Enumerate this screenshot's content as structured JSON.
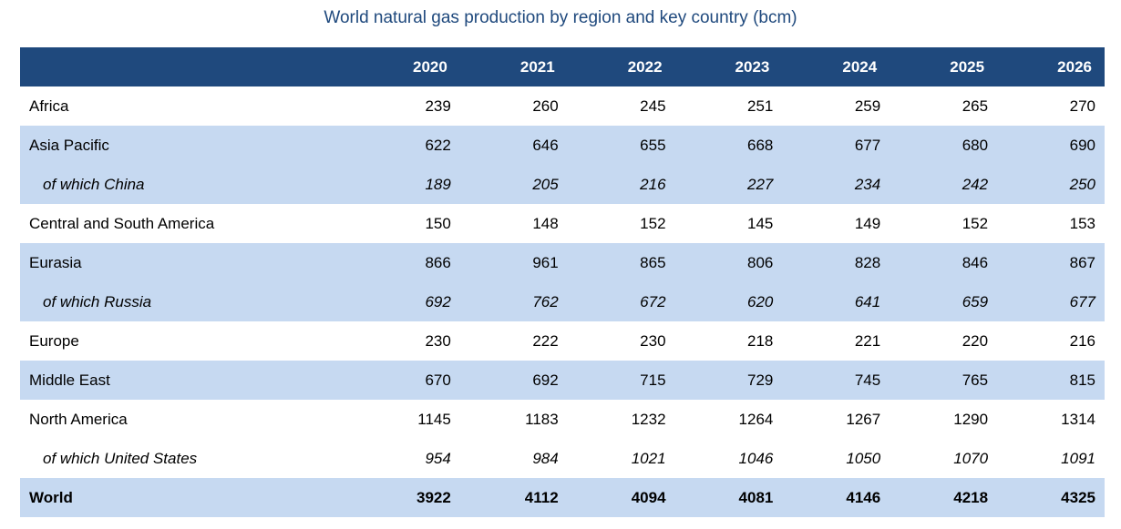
{
  "title": "World natural gas production by region and key country (bcm)",
  "table": {
    "headers": [
      "",
      "2020",
      "2021",
      "2022",
      "2023",
      "2024",
      "2025",
      "2026"
    ],
    "rows": [
      {
        "label": "Africa",
        "values": [
          "239",
          "260",
          "245",
          "251",
          "259",
          "265",
          "270"
        ]
      },
      {
        "label": "Asia Pacific",
        "values": [
          "622",
          "646",
          "655",
          "668",
          "677",
          "680",
          "690"
        ]
      },
      {
        "label": "of which China",
        "values": [
          "189",
          "205",
          "216",
          "227",
          "234",
          "242",
          "250"
        ]
      },
      {
        "label": "Central and South America",
        "values": [
          "150",
          "148",
          "152",
          "145",
          "149",
          "152",
          "153"
        ]
      },
      {
        "label": "Eurasia",
        "values": [
          "866",
          "961",
          "865",
          "806",
          "828",
          "846",
          "867"
        ]
      },
      {
        "label": "of which Russia",
        "values": [
          "692",
          "762",
          "672",
          "620",
          "641",
          "659",
          "677"
        ]
      },
      {
        "label": "Europe",
        "values": [
          "230",
          "222",
          "230",
          "218",
          "221",
          "220",
          "216"
        ]
      },
      {
        "label": "Middle East",
        "values": [
          "670",
          "692",
          "715",
          "729",
          "745",
          "765",
          "815"
        ]
      },
      {
        "label": "North America",
        "values": [
          "1145",
          "1183",
          "1232",
          "1264",
          "1267",
          "1290",
          "1314"
        ]
      },
      {
        "label": "of which United States",
        "values": [
          "954",
          "984",
          "1021",
          "1046",
          "1050",
          "1070",
          "1091"
        ]
      },
      {
        "label": "World",
        "values": [
          "3922",
          "4112",
          "4094",
          "4081",
          "4146",
          "4218",
          "4325"
        ]
      }
    ]
  },
  "colors": {
    "header_bg": "#1f497d",
    "band_bg": "#c6d9f1",
    "title_text": "#1f497d"
  }
}
